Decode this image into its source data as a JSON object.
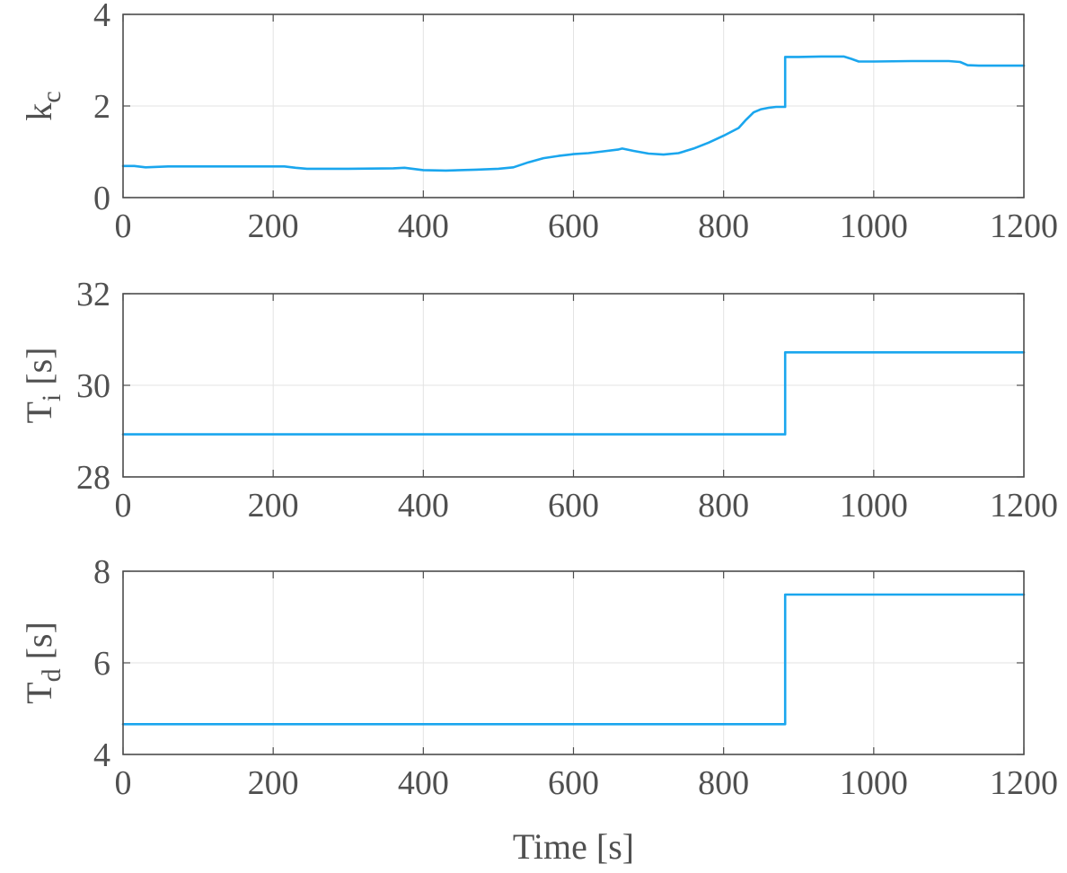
{
  "colors": {
    "series": "#1aa6ee",
    "axis": "#4d4d4d",
    "text": "#505050",
    "grid": "#e3e3e3"
  },
  "chart_data": [
    {
      "type": "line",
      "ylabel_main": "k",
      "ylabel_sub": "c",
      "ylabel_suffix": "",
      "xlabel": "",
      "xlim": [
        0,
        1200
      ],
      "ylim": [
        0,
        4
      ],
      "xticks": [
        0,
        200,
        400,
        600,
        800,
        1000,
        1200
      ],
      "yticks": [
        0,
        2,
        4
      ],
      "grid": true,
      "series": [
        {
          "x": [
            0,
            15,
            30,
            60,
            100,
            150,
            200,
            215,
            230,
            245,
            300,
            360,
            375,
            400,
            430,
            470,
            500,
            520,
            540,
            560,
            580,
            600,
            620,
            640,
            660,
            665,
            680,
            700,
            720,
            740,
            760,
            780,
            800,
            820,
            830,
            840,
            850,
            860,
            870,
            882,
            882,
            900,
            930,
            960,
            970,
            980,
            1000,
            1050,
            1100,
            1115,
            1125,
            1140,
            1200
          ],
          "y": [
            0.69,
            0.69,
            0.66,
            0.68,
            0.68,
            0.68,
            0.68,
            0.68,
            0.65,
            0.63,
            0.63,
            0.64,
            0.65,
            0.6,
            0.59,
            0.61,
            0.63,
            0.66,
            0.77,
            0.86,
            0.91,
            0.95,
            0.97,
            1.01,
            1.05,
            1.07,
            1.02,
            0.96,
            0.94,
            0.97,
            1.07,
            1.2,
            1.35,
            1.52,
            1.7,
            1.86,
            1.93,
            1.96,
            1.98,
            1.98,
            3.07,
            3.07,
            3.08,
            3.08,
            3.03,
            2.97,
            2.97,
            2.98,
            2.98,
            2.96,
            2.89,
            2.88,
            2.88
          ]
        }
      ]
    },
    {
      "type": "line",
      "ylabel_main": "T",
      "ylabel_sub": "i",
      "ylabel_suffix": " [s]",
      "xlabel": "",
      "xlim": [
        0,
        1200
      ],
      "ylim": [
        28,
        32
      ],
      "xticks": [
        0,
        200,
        400,
        600,
        800,
        1000,
        1200
      ],
      "yticks": [
        28,
        30,
        32
      ],
      "grid": true,
      "series": [
        {
          "x": [
            0,
            882,
            882,
            1200
          ],
          "y": [
            28.93,
            28.93,
            30.72,
            30.72
          ]
        }
      ]
    },
    {
      "type": "line",
      "ylabel_main": "T",
      "ylabel_sub": "d",
      "ylabel_suffix": " [s]",
      "xlabel": "Time [s]",
      "xlim": [
        0,
        1200
      ],
      "ylim": [
        4,
        8
      ],
      "xticks": [
        0,
        200,
        400,
        600,
        800,
        1000,
        1200
      ],
      "yticks": [
        4,
        6,
        8
      ],
      "grid": true,
      "series": [
        {
          "x": [
            0,
            882,
            882,
            1200
          ],
          "y": [
            4.66,
            4.66,
            7.49,
            7.49
          ]
        }
      ]
    }
  ]
}
